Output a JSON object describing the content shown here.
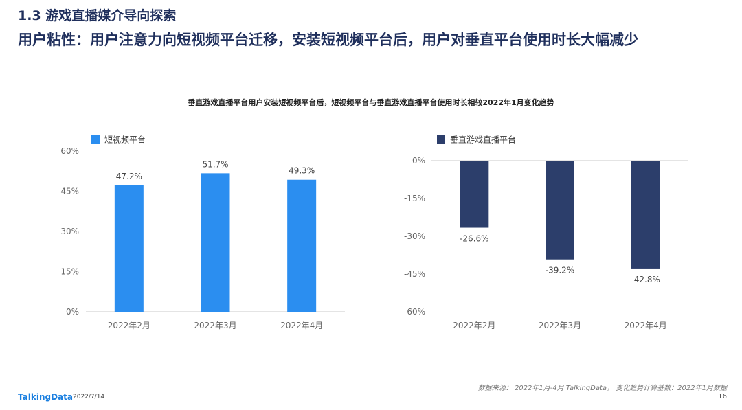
{
  "header": {
    "section_title": "1.3 游戏直播媒介导向探索",
    "headline": "用户粘性：用户注意力向短视频平台迁移，安装短视频平台后，用户对垂直平台使用时长大幅减少"
  },
  "chart_title": "垂直游戏直播平台用户安装短视频平台后，短视频平台与垂直游戏直播平台使用时长相较2022年1月变化趋势",
  "chart_data": [
    {
      "type": "bar",
      "categories": [
        "2022年2月",
        "2022年3月",
        "2022年4月"
      ],
      "series": [
        {
          "name": "短视频平台",
          "values": [
            47.2,
            51.7,
            49.3
          ],
          "color": "#2b8ef0"
        }
      ],
      "value_labels": [
        "47.2%",
        "51.7%",
        "49.3%"
      ],
      "ylim": [
        0,
        60
      ],
      "yticks": [
        0,
        15,
        30,
        45,
        60
      ],
      "ytick_labels": [
        "0%",
        "15%",
        "30%",
        "45%",
        "60%"
      ],
      "grid": false,
      "legend": "top-left"
    },
    {
      "type": "bar",
      "categories": [
        "2022年2月",
        "2022年3月",
        "2022年4月"
      ],
      "series": [
        {
          "name": "垂直游戏直播平台",
          "values": [
            -26.6,
            -39.2,
            -42.8
          ],
          "color": "#2c3e6b"
        }
      ],
      "value_labels": [
        "-26.6%",
        "-39.2%",
        "-42.8%"
      ],
      "ylim": [
        -60,
        0
      ],
      "yticks": [
        0,
        -15,
        -30,
        -45,
        -60
      ],
      "ytick_labels": [
        "0%",
        "-15%",
        "-30%",
        "-45%",
        "-60%"
      ],
      "grid": false,
      "legend": "top-left"
    }
  ],
  "footer": {
    "source": "数据来源：  2022年1月-4月 TalkingData，  变化趋势计算基数：2022年1月数据",
    "logo": "TalkingData",
    "date": "2022/7/14",
    "page": "16"
  }
}
